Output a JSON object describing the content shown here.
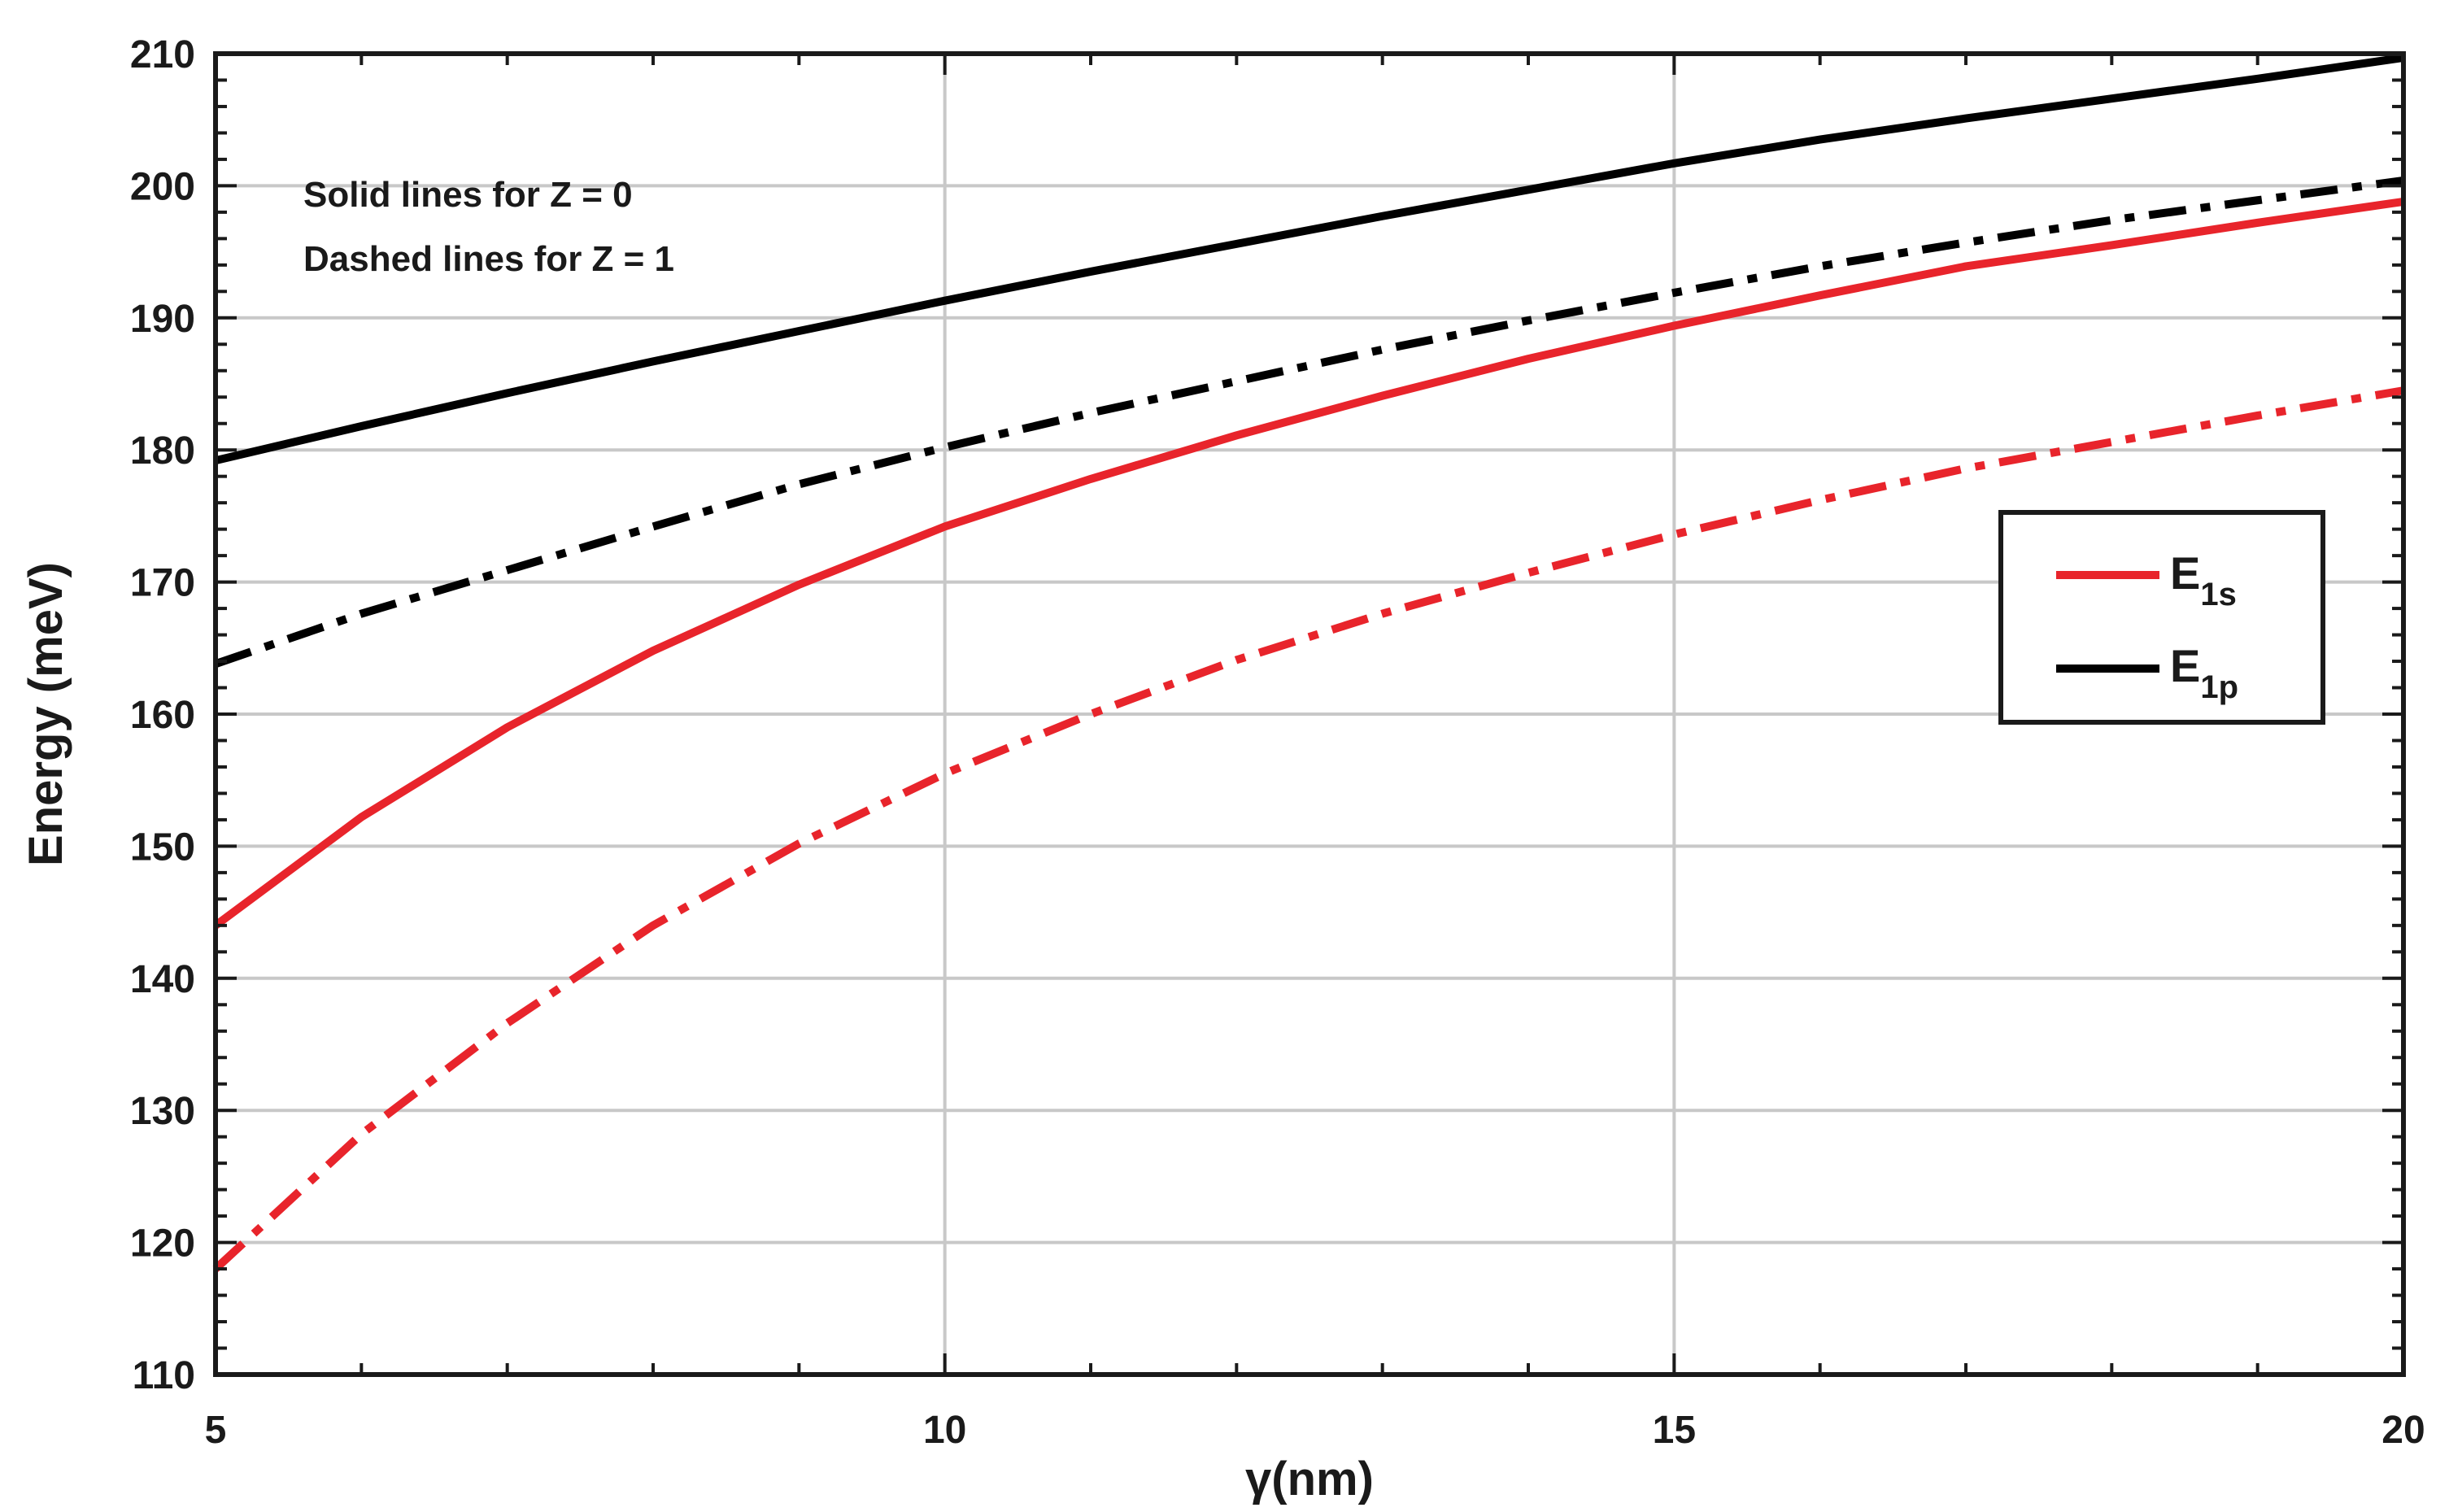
{
  "chart_data": {
    "type": "line",
    "xlabel": "γ(nm)",
    "ylabel": "Energy (meV)",
    "xlim": [
      5,
      20
    ],
    "ylim": [
      110,
      210
    ],
    "xticks": [
      5,
      10,
      15,
      20
    ],
    "yticks": [
      110,
      120,
      130,
      140,
      150,
      160,
      170,
      180,
      190,
      200,
      210
    ],
    "grid": true,
    "legend_placement": "right",
    "annotations": [
      "Solid lines for Z = 0",
      "Dashed lines for Z = 1"
    ],
    "legend": [
      {
        "label": "E",
        "subscript": "1s",
        "color": "#e8242b"
      },
      {
        "label": "E",
        "subscript": "1p",
        "color": "#000000"
      }
    ],
    "x": [
      5,
      6,
      7,
      8,
      9,
      10,
      11,
      12,
      13,
      14,
      15,
      16,
      17,
      18,
      19,
      20
    ],
    "series": [
      {
        "level": "1s",
        "z": 0,
        "line_style": "solid",
        "color": "#e8242b",
        "values": [
          144,
          152.2,
          159,
          164.8,
          169.8,
          174.2,
          177.8,
          181.1,
          184.1,
          186.9,
          189.4,
          191.7,
          193.9,
          195.5,
          197.2,
          198.8
        ]
      },
      {
        "level": "1s",
        "z": 1,
        "line_style": "dashdot",
        "color": "#e8242b",
        "values": [
          118,
          128.2,
          136.6,
          144,
          150.2,
          155.5,
          160,
          164.1,
          167.6,
          170.7,
          173.6,
          176.2,
          178.6,
          180.6,
          182.6,
          184.5
        ]
      },
      {
        "level": "1p",
        "z": 0,
        "line_style": "solid",
        "color": "#000000",
        "values": [
          179.2,
          181.8,
          184.3,
          186.7,
          189,
          191.3,
          193.5,
          195.6,
          197.7,
          199.7,
          201.7,
          203.5,
          205.1,
          206.6,
          208.1,
          209.7
        ]
      },
      {
        "level": "1p",
        "z": 1,
        "line_style": "dashdot",
        "color": "#000000",
        "values": [
          163.8,
          167.6,
          170.9,
          174.2,
          177.4,
          180.2,
          182.8,
          185.2,
          187.6,
          189.8,
          191.9,
          193.9,
          195.7,
          197.4,
          198.9,
          200.4
        ]
      }
    ]
  }
}
